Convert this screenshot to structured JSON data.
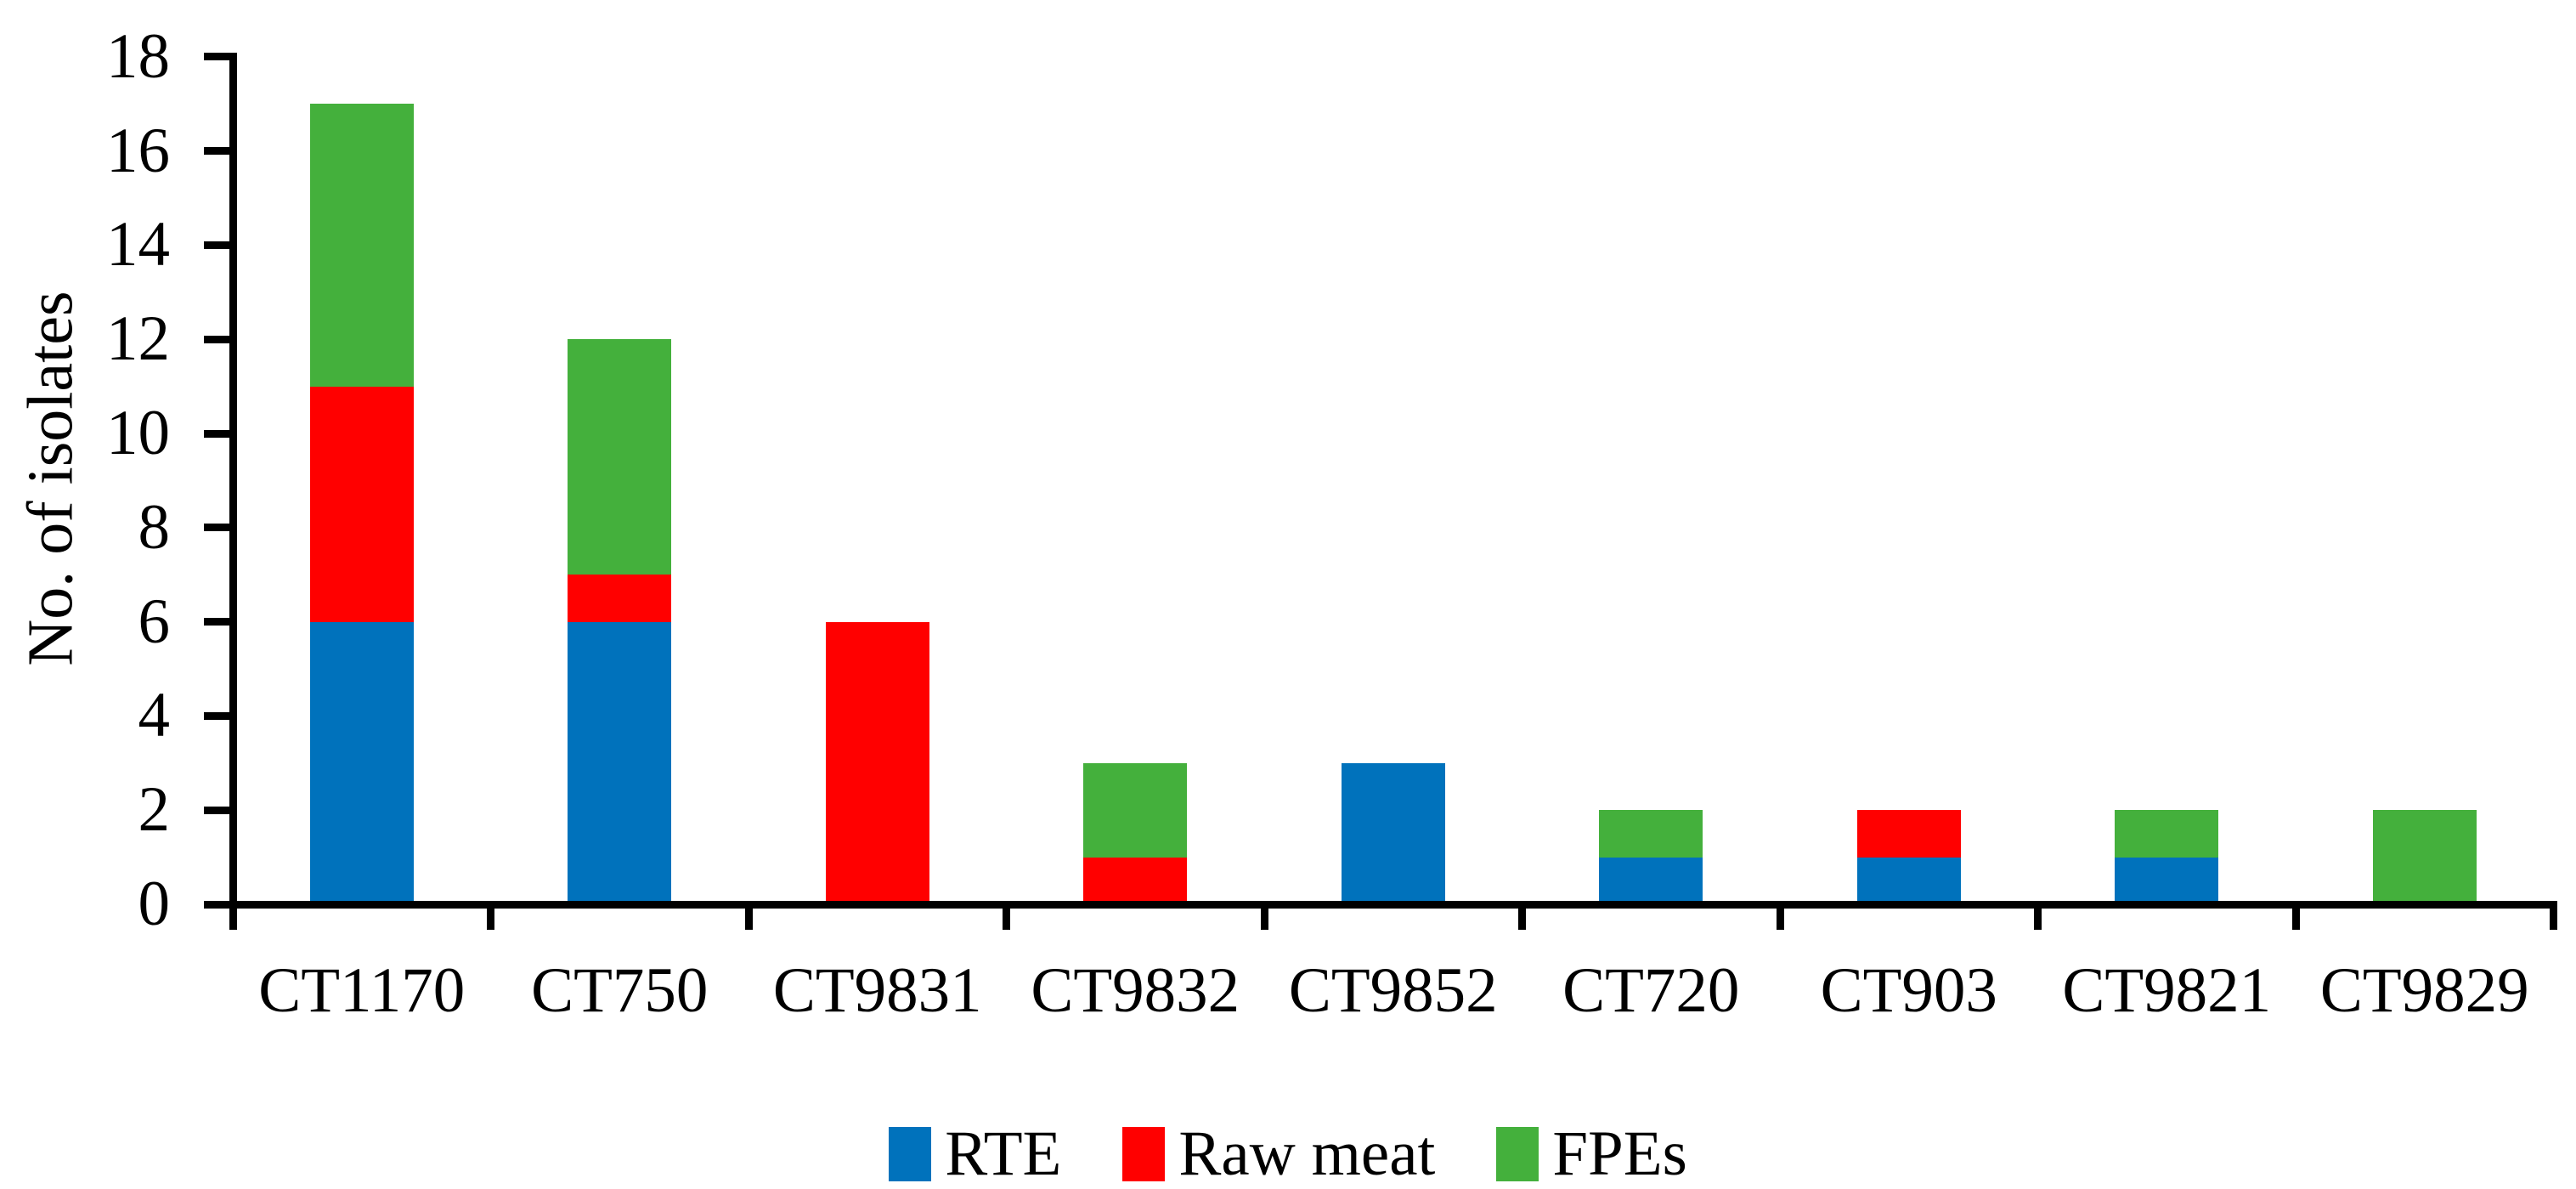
{
  "chart_data": {
    "type": "bar",
    "stacked": true,
    "title": "",
    "xlabel": "",
    "ylabel": "No. of isolates",
    "categories": [
      "CT1170",
      "CT750",
      "CT9831",
      "CT9832",
      "CT9852",
      "CT720",
      "CT903",
      "CT9821",
      "CT9829"
    ],
    "series": [
      {
        "name": "RTE",
        "color": "#0072BC",
        "values": [
          6,
          6,
          0,
          0,
          3,
          1,
          1,
          1,
          0
        ]
      },
      {
        "name": "Raw meat",
        "color": "#FF0000",
        "values": [
          5,
          1,
          6,
          1,
          0,
          0,
          1,
          0,
          0
        ]
      },
      {
        "name": "FPEs",
        "color": "#44B03C",
        "values": [
          6,
          5,
          0,
          2,
          0,
          1,
          0,
          1,
          2
        ]
      }
    ],
    "totals": [
      17,
      12,
      6,
      3,
      3,
      2,
      2,
      2,
      2
    ],
    "ylim": [
      0,
      18
    ],
    "ytick_step": 2,
    "ytick_labels": [
      "0",
      "2",
      "4",
      "6",
      "8",
      "10",
      "12",
      "14",
      "16",
      "18"
    ],
    "grid": false,
    "legend_position": "bottom",
    "axis_color": "#000000",
    "background_color": "#FFFFFF"
  }
}
